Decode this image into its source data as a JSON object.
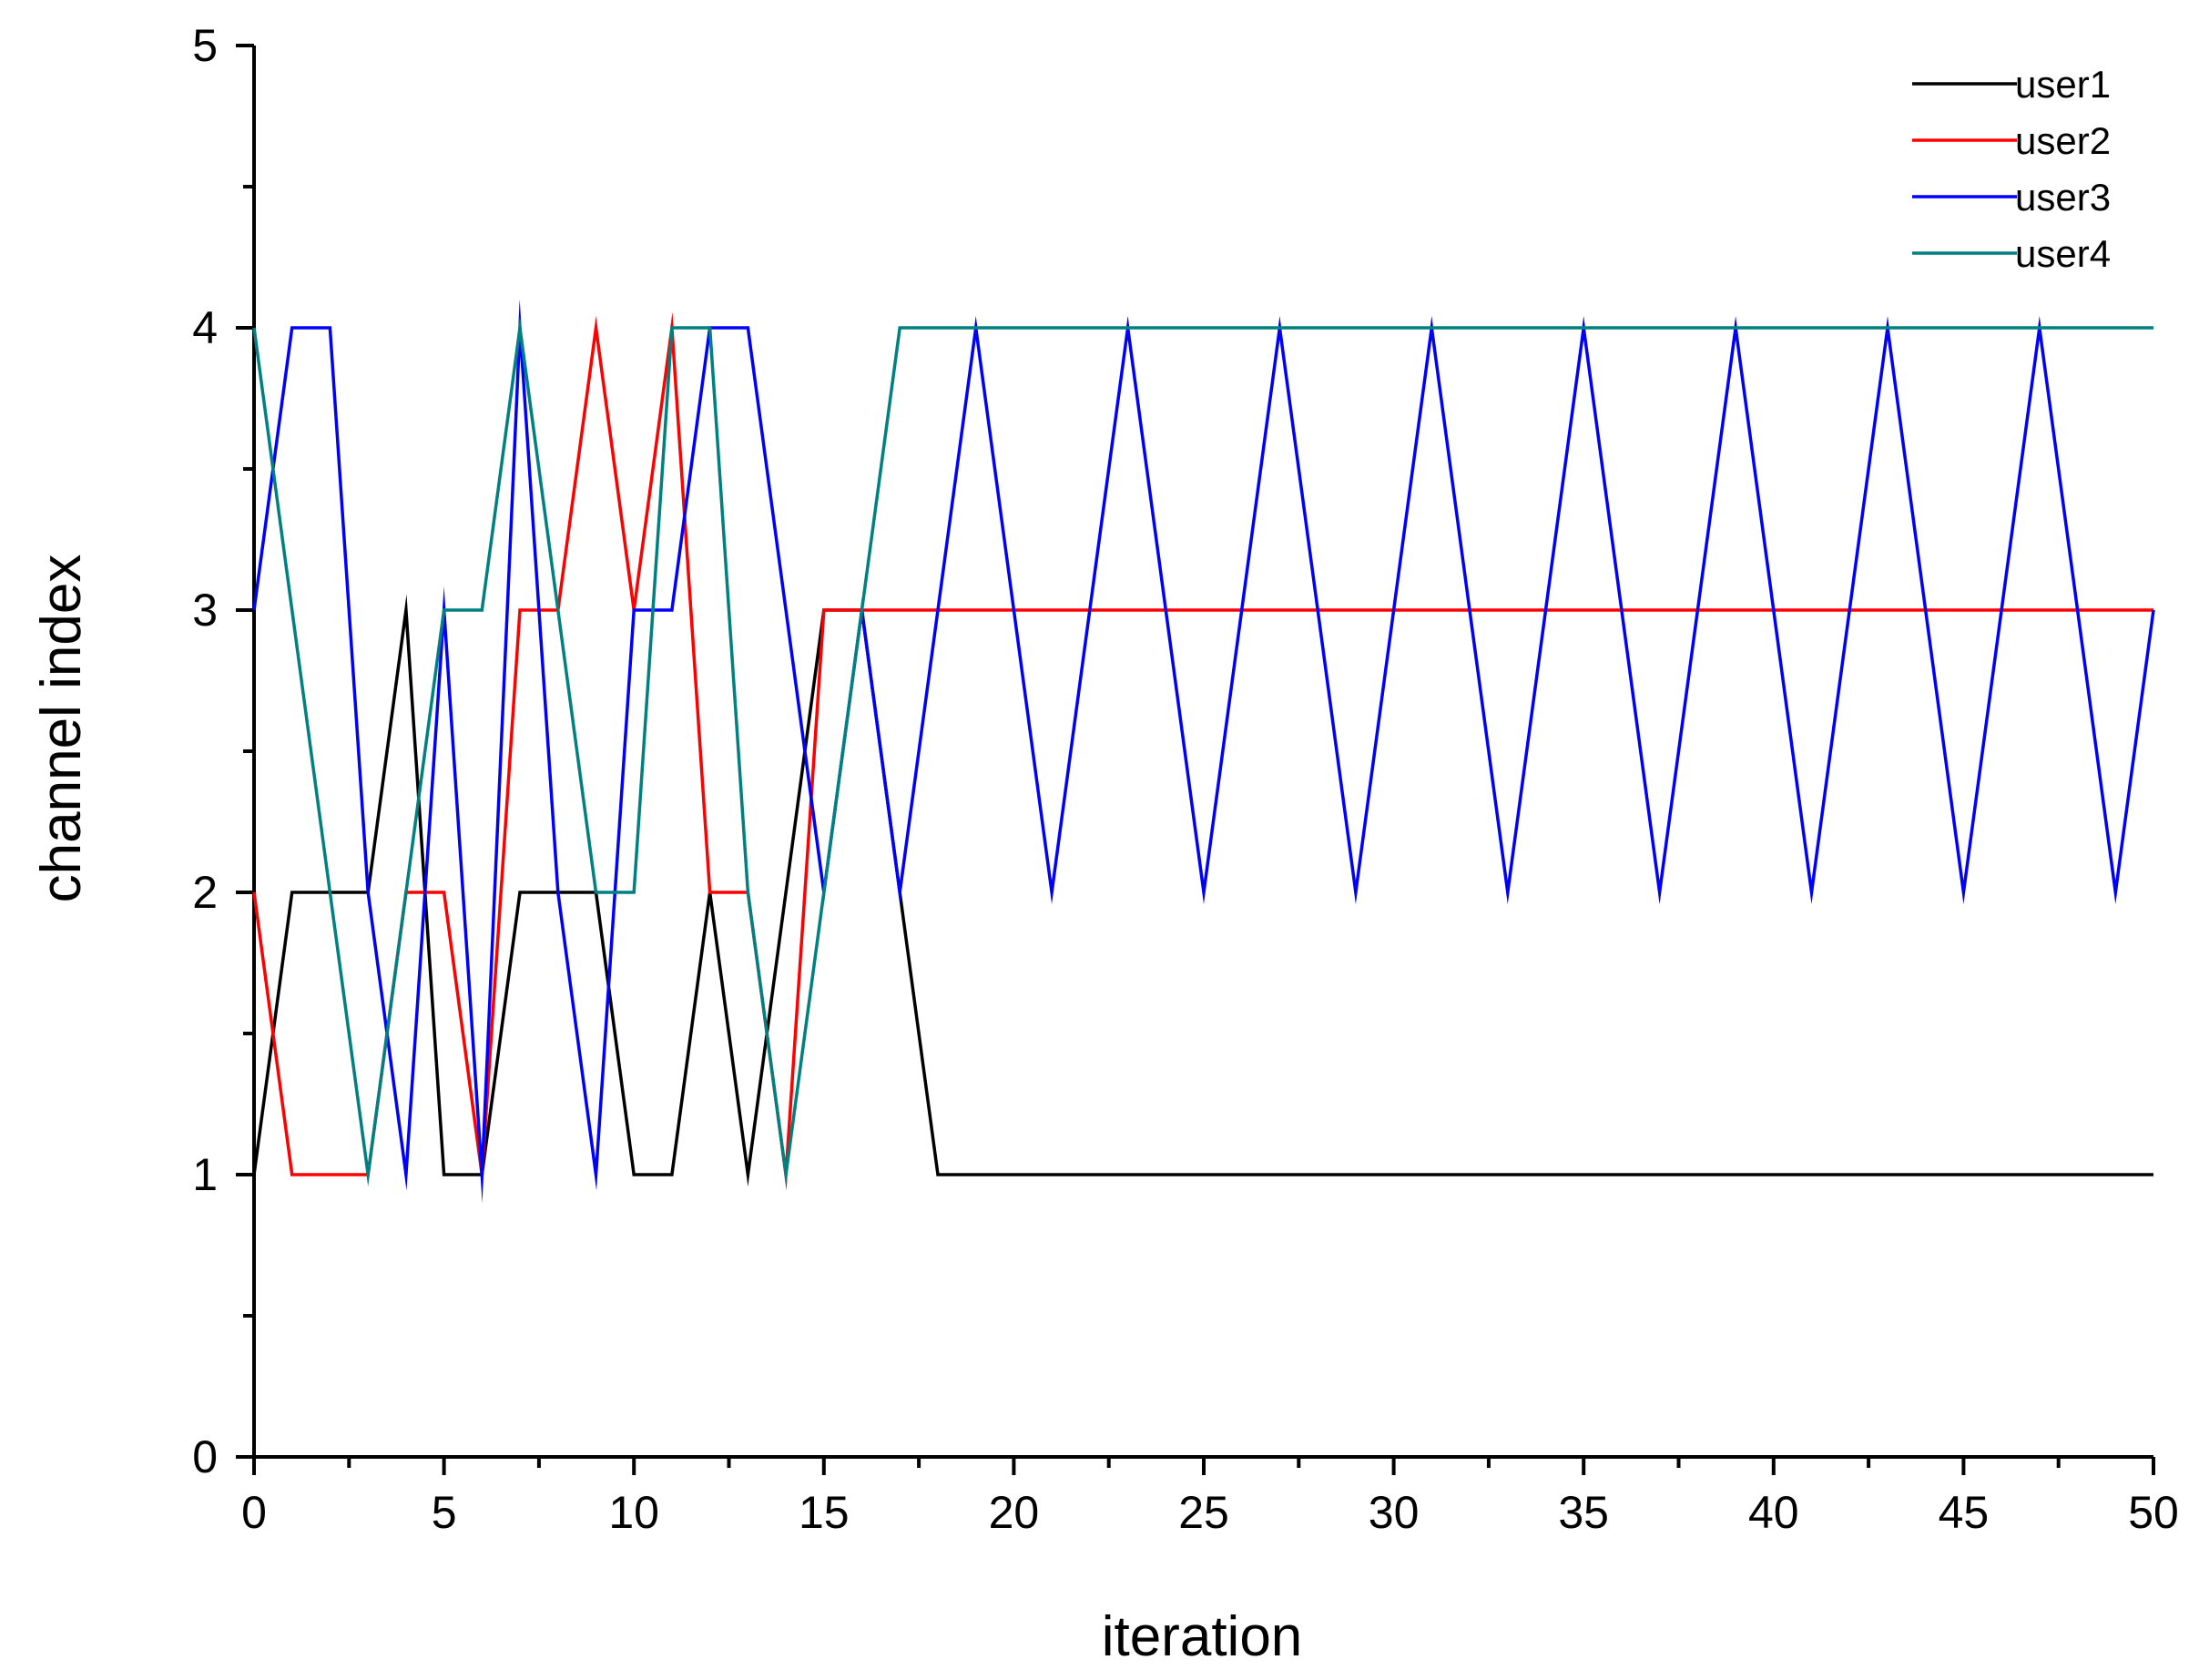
{
  "chart_data": {
    "type": "line",
    "title": "",
    "xlabel": "iteration",
    "ylabel": "channel index",
    "xlim": [
      0,
      50
    ],
    "ylim": [
      0,
      5
    ],
    "xticks": [
      0,
      5,
      10,
      15,
      20,
      25,
      30,
      35,
      40,
      45,
      50
    ],
    "yticks": [
      0,
      1,
      2,
      3,
      4,
      5
    ],
    "x_minor_step": 2.5,
    "y_minor_step": 0.5,
    "grid": false,
    "legend_position": "top-right",
    "x": [
      0,
      1,
      2,
      3,
      4,
      5,
      6,
      7,
      8,
      9,
      10,
      11,
      12,
      13,
      14,
      15,
      16,
      17,
      18,
      19,
      20,
      21,
      22,
      23,
      24,
      25,
      26,
      27,
      28,
      29,
      30,
      31,
      32,
      33,
      34,
      35,
      36,
      37,
      38,
      39,
      40,
      41,
      42,
      43,
      44,
      45,
      46,
      47,
      48,
      49,
      50
    ],
    "series": [
      {
        "name": "user1",
        "color": "#000000",
        "values": [
          1,
          2,
          2,
          2,
          3,
          1,
          1,
          2,
          2,
          2,
          1,
          1,
          2,
          1,
          2,
          3,
          3,
          2,
          1,
          1,
          1,
          1,
          1,
          1,
          1,
          1,
          1,
          1,
          1,
          1,
          1,
          1,
          1,
          1,
          1,
          1,
          1,
          1,
          1,
          1,
          1,
          1,
          1,
          1,
          1,
          1,
          1,
          1,
          1,
          1,
          1
        ]
      },
      {
        "name": "user2",
        "color": "#ff0000",
        "values": [
          2,
          1,
          1,
          1,
          2,
          2,
          1,
          3,
          3,
          4,
          3,
          4,
          2,
          2,
          1,
          3,
          3,
          3,
          3,
          3,
          3,
          3,
          3,
          3,
          3,
          3,
          3,
          3,
          3,
          3,
          3,
          3,
          3,
          3,
          3,
          3,
          3,
          3,
          3,
          3,
          3,
          3,
          3,
          3,
          3,
          3,
          3,
          3,
          3,
          3,
          3
        ]
      },
      {
        "name": "user3",
        "color": "#0000ff",
        "values": [
          3,
          4,
          4,
          2,
          1,
          3,
          1,
          4,
          2,
          1,
          3,
          3,
          4,
          4,
          3,
          2,
          3,
          2,
          3,
          4,
          3,
          2,
          3,
          4,
          3,
          2,
          3,
          4,
          3,
          2,
          3,
          4,
          3,
          2,
          3,
          4,
          3,
          2,
          3,
          4,
          3,
          2,
          3,
          4,
          3,
          2,
          3,
          4,
          3,
          2,
          3
        ]
      },
      {
        "name": "user4",
        "color": "#008080",
        "values": [
          4,
          3,
          2,
          1,
          2,
          3,
          3,
          4,
          3,
          2,
          2,
          4,
          4,
          2,
          1,
          2,
          3,
          4,
          4,
          4,
          4,
          4,
          4,
          4,
          4,
          4,
          4,
          4,
          4,
          4,
          4,
          4,
          4,
          4,
          4,
          4,
          4,
          4,
          4,
          4,
          4,
          4,
          4,
          4,
          4,
          4,
          4,
          4,
          4,
          4,
          4
        ]
      }
    ]
  }
}
